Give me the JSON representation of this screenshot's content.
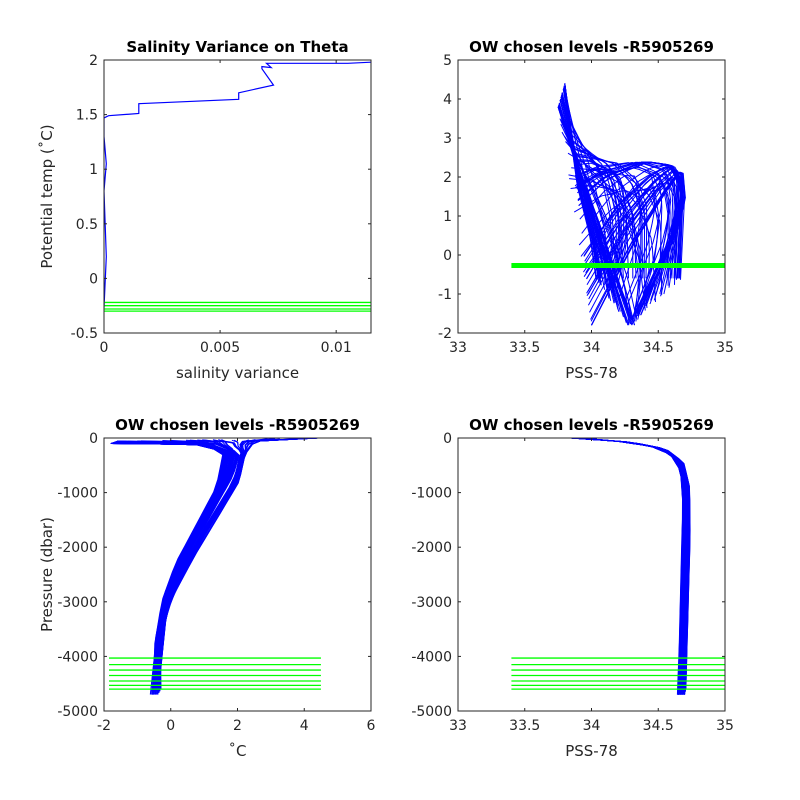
{
  "colors": {
    "profile": "#0000ff",
    "chosen_levels": "#00ff00",
    "axes": "#262626"
  },
  "chart_data": [
    {
      "type": "line",
      "title": "Salinity Variance on Theta",
      "xlabel": "salinity variance",
      "ylabel": "Potential temp (˚C)",
      "xlim": [
        0,
        0.0115
      ],
      "ylim": [
        -0.5,
        2
      ],
      "xticks": [
        0,
        0.005,
        0.01
      ],
      "xtick_labels": [
        "0",
        "0.005",
        "0.01"
      ],
      "yticks": [
        -0.5,
        0,
        0.5,
        1,
        1.5,
        2
      ],
      "ytick_labels": [
        "-0.5",
        "0",
        "0.5",
        "1",
        "1.5",
        "2"
      ],
      "grid": false,
      "series": [
        {
          "color": "#0000ff",
          "x": [
            0.0,
            0.0001,
            0.0,
            0.0001,
            0.0,
            0.0,
            0.0002,
            0.0015,
            0.0015,
            0.0058,
            0.0058,
            0.0073,
            0.0068,
            0.0068,
            0.0072,
            0.007,
            0.0105,
            0.0115
          ],
          "y": [
            -0.27,
            0.2,
            0.8,
            1.05,
            1.3,
            1.47,
            1.49,
            1.51,
            1.6,
            1.64,
            1.7,
            1.77,
            1.92,
            1.94,
            1.93,
            1.97,
            1.97,
            1.98
          ]
        }
      ],
      "hlines": {
        "color": "#00ff00",
        "y": [
          -0.22,
          -0.25,
          -0.28,
          -0.3
        ],
        "xmin": 0,
        "xmax": 0.0115
      }
    },
    {
      "type": "line",
      "title": "OW chosen levels -R5905269",
      "xlabel": "PSS-78",
      "ylabel": "",
      "xlim": [
        33,
        35
      ],
      "ylim": [
        -2,
        5
      ],
      "xticks": [
        33,
        33.5,
        34,
        34.5,
        35
      ],
      "xtick_labels": [
        "33",
        "33.5",
        "34",
        "34.5",
        "35"
      ],
      "yticks": [
        -2,
        -1,
        0,
        1,
        2,
        3,
        4,
        5
      ],
      "ytick_labels": [
        "-2",
        "-1",
        "0",
        "1",
        "2",
        "3",
        "4",
        "5"
      ],
      "grid": false,
      "profiles": {
        "color": "#0000ff",
        "count": 120,
        "representative": [
          {
            "x": [
              33.8,
              33.85,
              33.9,
              34.0,
              34.05
            ],
            "y": [
              4.4,
              3.0,
              1.8,
              0.5,
              -0.6
            ]
          },
          {
            "x": [
              33.75,
              33.9,
              34.05,
              34.2,
              34.3
            ],
            "y": [
              3.8,
              2.2,
              0.8,
              -0.8,
              -1.8
            ]
          },
          {
            "x": [
              34.0,
              34.3,
              34.55,
              34.68,
              34.7,
              34.6,
              34.35
            ],
            "y": [
              -1.8,
              0.2,
              1.6,
              2.2,
              1.4,
              0.3,
              -1.5
            ]
          },
          {
            "x": [
              33.9,
              34.1,
              34.4,
              34.6,
              34.68,
              34.65
            ],
            "y": [
              1.4,
              2.0,
              2.4,
              2.3,
              1.8,
              -0.6
            ]
          }
        ]
      },
      "hlines": {
        "color": "#00ff00",
        "y": [
          -0.27
        ],
        "xmin": 33.4,
        "xmax": 35
      }
    },
    {
      "type": "line",
      "title": "OW chosen levels -R5905269",
      "xlabel": "˚C",
      "ylabel": "Pressure (dbar)",
      "xlim": [
        -2,
        6
      ],
      "ylim": [
        -5000,
        0
      ],
      "xticks": [
        -2,
        0,
        2,
        4,
        6
      ],
      "xtick_labels": [
        "-2",
        "0",
        "2",
        "4",
        "6"
      ],
      "yticks": [
        -5000,
        -4000,
        -3000,
        -2000,
        -1000,
        0
      ],
      "ytick_labels": [
        "-5000",
        "-4000",
        "-3000",
        "-2000",
        "-1000",
        "0"
      ],
      "grid": false,
      "profiles": {
        "color": "#0000ff",
        "count": 120,
        "representative": [
          {
            "x": [
              -1.8,
              1.0,
              2.0,
              1.8,
              1.2,
              0.5,
              0.0,
              -0.3,
              -0.5
            ],
            "y": [
              -100,
              -120,
              -300,
              -700,
              -1300,
              -2000,
              -2700,
              -3500,
              -4700
            ]
          },
          {
            "x": [
              -1.6,
              0.5,
              1.6,
              1.4,
              0.8,
              0.2,
              -0.2,
              -0.4,
              -0.4
            ],
            "y": [
              -60,
              -80,
              -250,
              -900,
              -1600,
              -2300,
              -3000,
              -3800,
              -4600
            ]
          },
          {
            "x": [
              4.4,
              2.5,
              2.2,
              2.0,
              1.4,
              0.6,
              -0.2,
              -0.4
            ],
            "y": [
              0,
              -60,
              -300,
              -800,
              -1400,
              -2200,
              -3100,
              -4200
            ]
          }
        ]
      },
      "hlines": {
        "color": "#00ff00",
        "y": [
          -4030,
          -4150,
          -4250,
          -4350,
          -4450,
          -4530,
          -4600
        ],
        "xmin": -1.85,
        "xmax": 4.5
      }
    },
    {
      "type": "line",
      "title": "OW chosen levels -R5905269",
      "xlabel": "PSS-78",
      "ylabel": "",
      "xlim": [
        33,
        35
      ],
      "ylim": [
        -5000,
        0
      ],
      "xticks": [
        33,
        33.5,
        34,
        34.5,
        35
      ],
      "xtick_labels": [
        "33",
        "33.5",
        "34",
        "34.5",
        "35"
      ],
      "yticks": [
        -5000,
        -4000,
        -3000,
        -2000,
        -1000,
        0
      ],
      "ytick_labels": [
        "-5000",
        "-4000",
        "-3000",
        "-2000",
        "-1000",
        "0"
      ],
      "grid": false,
      "profiles": {
        "color": "#0000ff",
        "count": 120,
        "representative": [
          {
            "x": [
              33.85,
              34.2,
              34.45,
              34.6,
              34.68,
              34.7,
              34.69,
              34.68,
              34.67
            ],
            "y": [
              0,
              -60,
              -150,
              -300,
              -600,
              -1200,
              -2500,
              -3800,
              -4700
            ]
          },
          {
            "x": [
              33.9,
              34.3,
              34.55,
              34.68,
              34.72,
              34.72,
              34.7,
              34.68
            ],
            "y": [
              0,
              -80,
              -200,
              -450,
              -900,
              -1800,
              -3200,
              -4600
            ]
          }
        ]
      },
      "hlines": {
        "color": "#00ff00",
        "y": [
          -4030,
          -4150,
          -4250,
          -4350,
          -4450,
          -4530,
          -4600
        ],
        "xmin": 33.4,
        "xmax": 35
      }
    }
  ]
}
